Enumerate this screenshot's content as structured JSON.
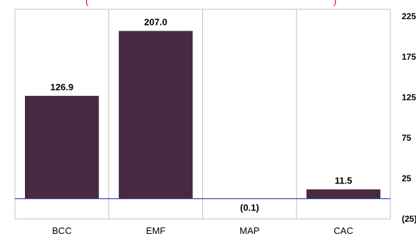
{
  "chart_data": {
    "type": "bar",
    "title": "(",
    "title_right": ")",
    "categories": [
      "BCC",
      "EMF",
      "MAP",
      "CAC"
    ],
    "values": [
      126.9,
      207.0,
      -0.1,
      11.5
    ],
    "value_labels": [
      "126.9",
      "207.0",
      "(0.1)",
      "11.5"
    ],
    "ylim": [
      -25,
      225
    ],
    "y_ticks": [
      225,
      175,
      125,
      75,
      25,
      -25
    ],
    "y_tick_labels": [
      "225",
      "175",
      "125",
      "75",
      "25",
      "(25)"
    ],
    "y_axis_side": "right",
    "grid": "vertical separators",
    "colors": {
      "bar": "#472942",
      "zero_line": "#3f3fbf",
      "grid": "#c0c0c0",
      "title": "#cc0000"
    }
  }
}
